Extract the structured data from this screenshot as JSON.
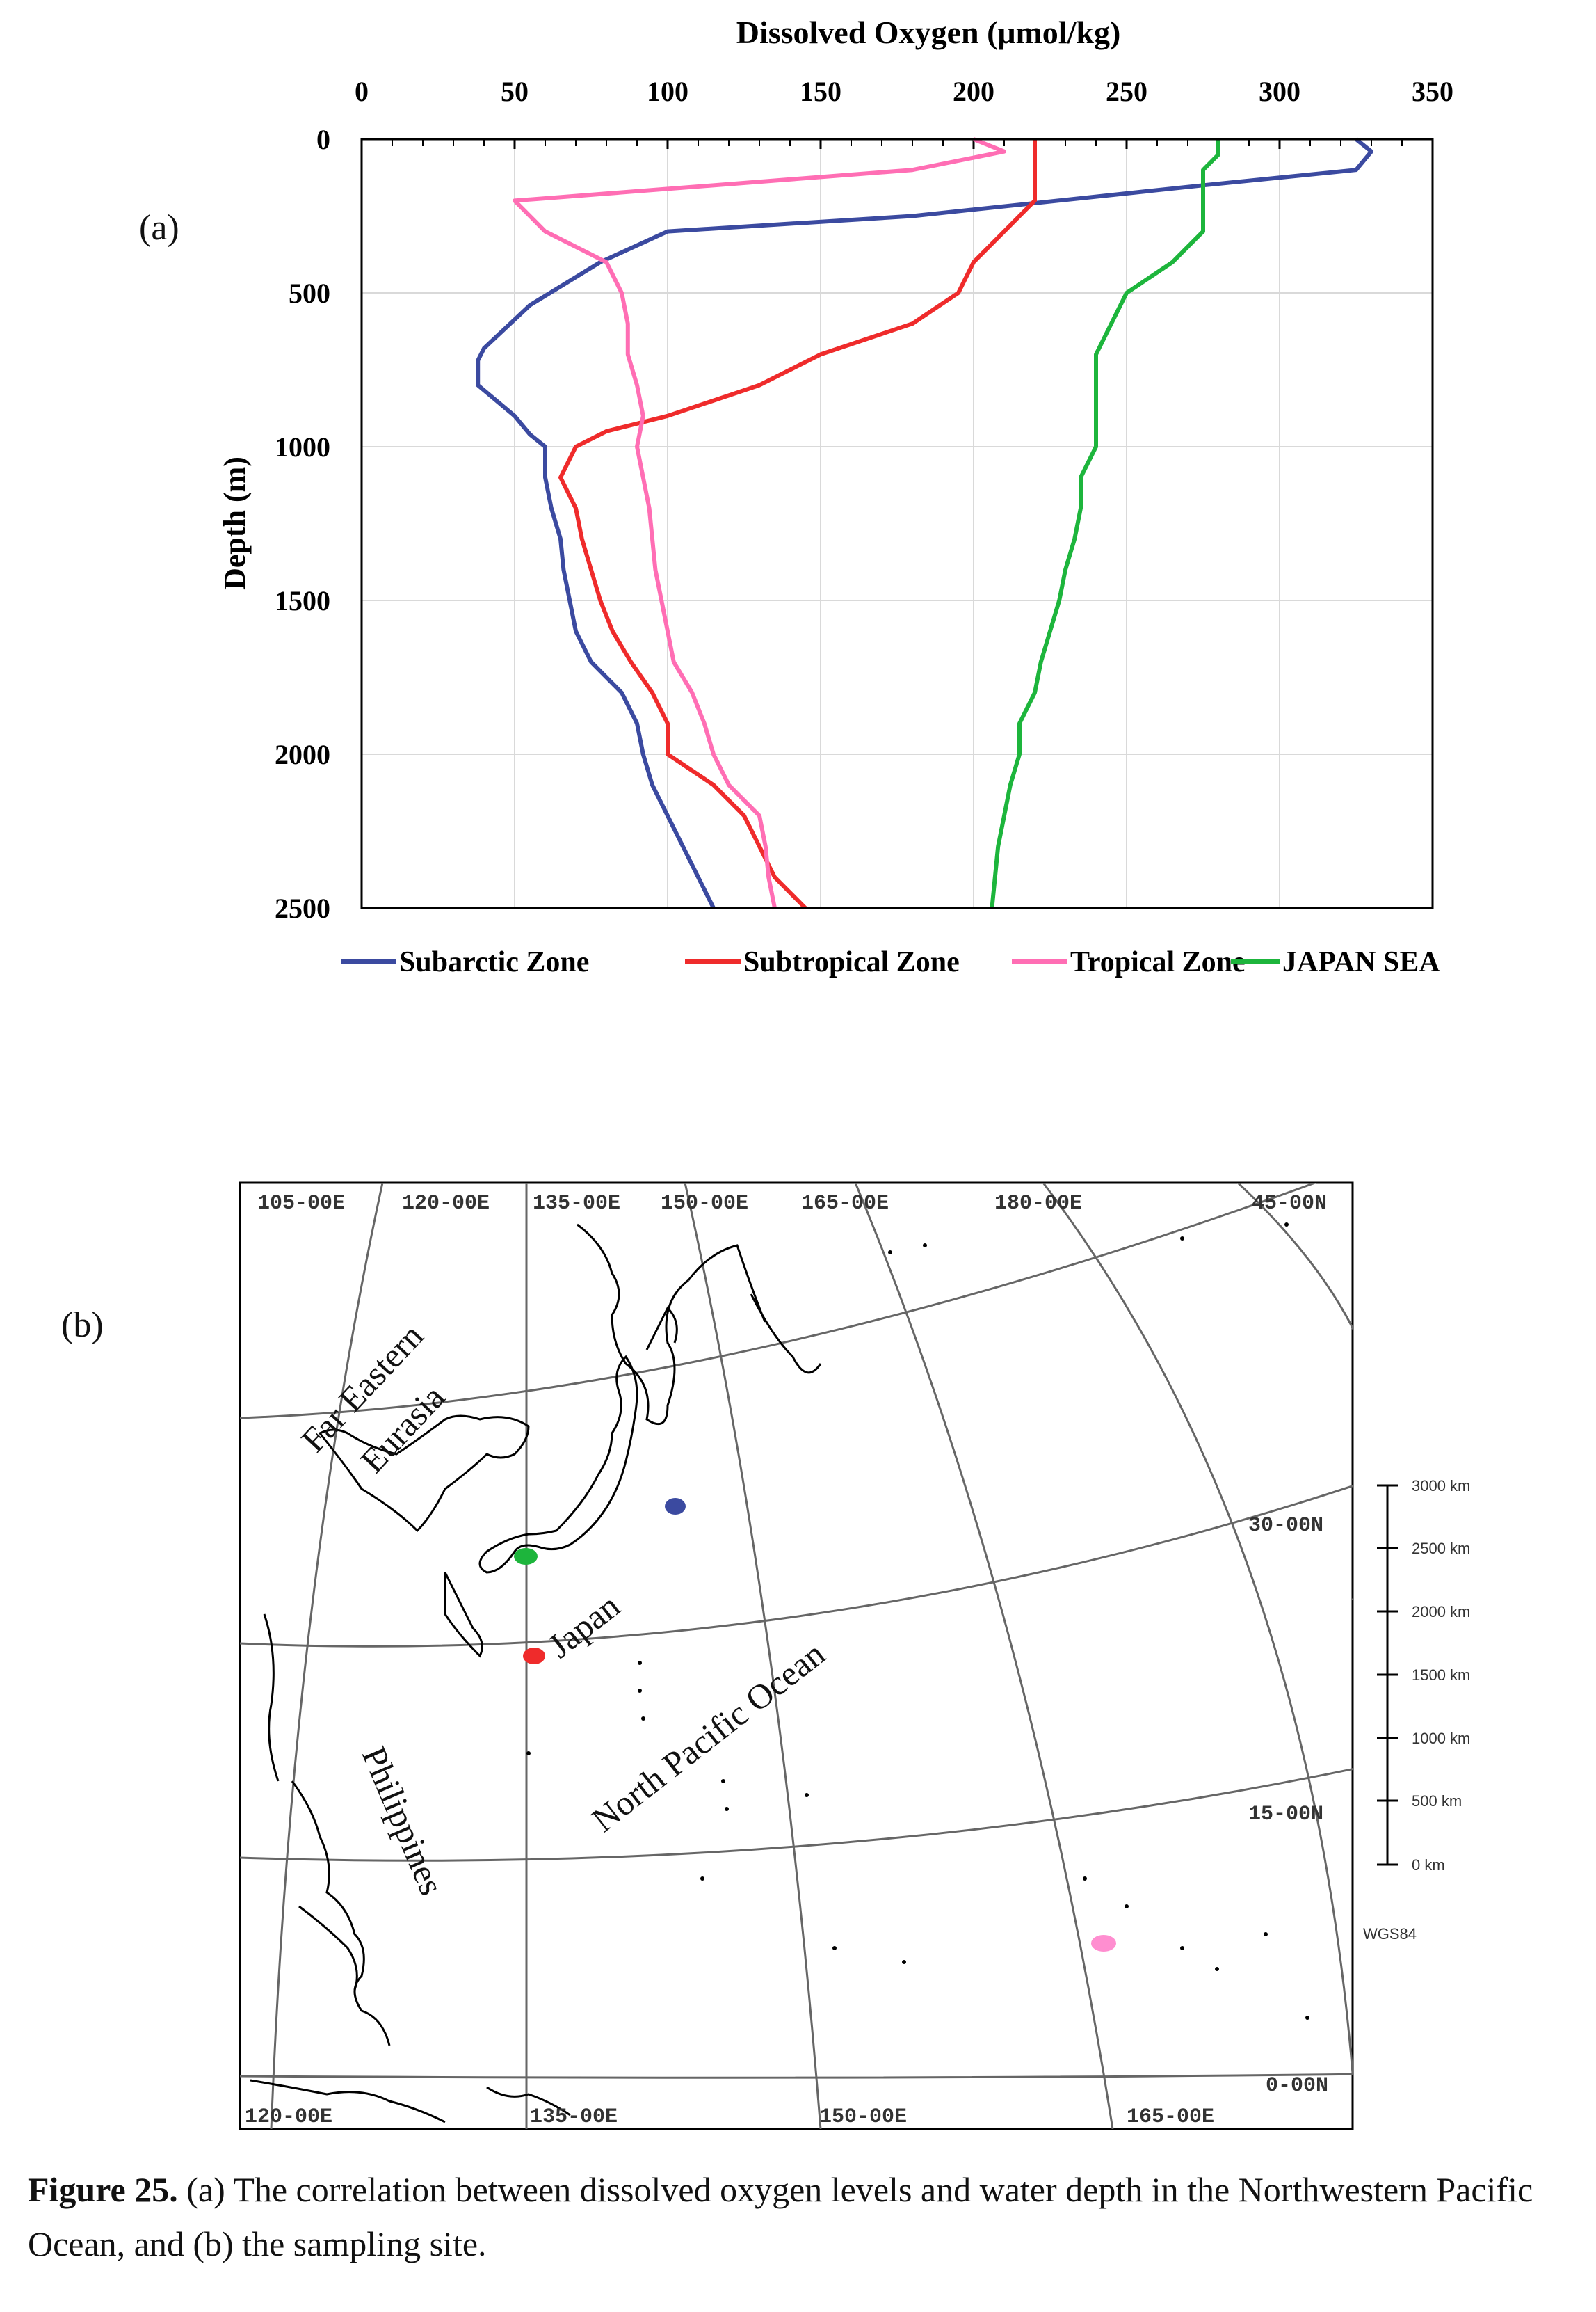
{
  "panel_a_label": "(a)",
  "panel_b_label": "(b)",
  "chart_data": {
    "type": "line",
    "title": "",
    "xlabel": "Dissolved Oxygen (μmol/kg)",
    "ylabel": "Depth (m)",
    "xlim": [
      0,
      350
    ],
    "ylim": [
      0,
      2500
    ],
    "x_axis_position": "top",
    "y_inverted": true,
    "x_ticks": [
      "0",
      "50",
      "100",
      "150",
      "200",
      "250",
      "300",
      "350"
    ],
    "y_ticks": [
      "0",
      "500",
      "1000",
      "1500",
      "2000",
      "2500"
    ],
    "grid": true,
    "legend_position": "bottom",
    "series": [
      {
        "name": "Subarctic Zone",
        "color": "#3b4aa0",
        "points": [
          [
            325,
            0
          ],
          [
            330,
            40
          ],
          [
            325,
            100
          ],
          [
            275,
            150
          ],
          [
            180,
            250
          ],
          [
            100,
            300
          ],
          [
            78,
            400
          ],
          [
            55,
            540
          ],
          [
            40,
            680
          ],
          [
            38,
            720
          ],
          [
            38,
            800
          ],
          [
            50,
            900
          ],
          [
            55,
            960
          ],
          [
            60,
            1000
          ],
          [
            60,
            1100
          ],
          [
            62,
            1200
          ],
          [
            65,
            1300
          ],
          [
            66,
            1400
          ],
          [
            68,
            1500
          ],
          [
            70,
            1600
          ],
          [
            75,
            1700
          ],
          [
            85,
            1800
          ],
          [
            90,
            1900
          ],
          [
            92,
            2000
          ],
          [
            95,
            2100
          ],
          [
            100,
            2200
          ],
          [
            105,
            2300
          ],
          [
            110,
            2400
          ],
          [
            115,
            2500
          ]
        ]
      },
      {
        "name": "Subtropical Zone",
        "color": "#ef2b2b",
        "points": [
          [
            220,
            0
          ],
          [
            220,
            100
          ],
          [
            220,
            200
          ],
          [
            210,
            300
          ],
          [
            200,
            400
          ],
          [
            195,
            500
          ],
          [
            180,
            600
          ],
          [
            150,
            700
          ],
          [
            130,
            800
          ],
          [
            100,
            900
          ],
          [
            80,
            950
          ],
          [
            70,
            1000
          ],
          [
            65,
            1100
          ],
          [
            70,
            1200
          ],
          [
            72,
            1300
          ],
          [
            75,
            1400
          ],
          [
            78,
            1500
          ],
          [
            82,
            1600
          ],
          [
            88,
            1700
          ],
          [
            95,
            1800
          ],
          [
            100,
            1900
          ],
          [
            100,
            2000
          ],
          [
            115,
            2100
          ],
          [
            125,
            2200
          ],
          [
            130,
            2300
          ],
          [
            135,
            2400
          ],
          [
            145,
            2500
          ]
        ]
      },
      {
        "name": "Tropical Zone",
        "color": "#ff6eb4",
        "points": [
          [
            200,
            0
          ],
          [
            210,
            40
          ],
          [
            180,
            100
          ],
          [
            50,
            200
          ],
          [
            60,
            300
          ],
          [
            80,
            400
          ],
          [
            85,
            500
          ],
          [
            87,
            600
          ],
          [
            87,
            700
          ],
          [
            90,
            800
          ],
          [
            92,
            900
          ],
          [
            90,
            1000
          ],
          [
            92,
            1100
          ],
          [
            94,
            1200
          ],
          [
            95,
            1300
          ],
          [
            96,
            1400
          ],
          [
            98,
            1500
          ],
          [
            100,
            1600
          ],
          [
            102,
            1700
          ],
          [
            108,
            1800
          ],
          [
            112,
            1900
          ],
          [
            115,
            2000
          ],
          [
            120,
            2100
          ],
          [
            130,
            2200
          ],
          [
            132,
            2300
          ],
          [
            133,
            2400
          ],
          [
            135,
            2500
          ]
        ]
      },
      {
        "name": "JAPAN SEA",
        "color": "#1db53c",
        "points": [
          [
            280,
            0
          ],
          [
            280,
            50
          ],
          [
            275,
            100
          ],
          [
            275,
            200
          ],
          [
            275,
            300
          ],
          [
            265,
            400
          ],
          [
            250,
            500
          ],
          [
            245,
            600
          ],
          [
            240,
            700
          ],
          [
            240,
            800
          ],
          [
            240,
            900
          ],
          [
            240,
            1000
          ],
          [
            235,
            1100
          ],
          [
            235,
            1200
          ],
          [
            233,
            1300
          ],
          [
            230,
            1400
          ],
          [
            228,
            1500
          ],
          [
            225,
            1600
          ],
          [
            222,
            1700
          ],
          [
            220,
            1800
          ],
          [
            215,
            1900
          ],
          [
            215,
            2000
          ],
          [
            212,
            2100
          ],
          [
            210,
            2200
          ],
          [
            208,
            2300
          ],
          [
            207,
            2400
          ],
          [
            206,
            2500
          ]
        ]
      }
    ]
  },
  "map": {
    "top_lon_labels": [
      "105-00E",
      "120-00E",
      "135-00E",
      "150-00E",
      "165-00E",
      "180-00E",
      "45-00N"
    ],
    "bottom_lon_labels": [
      "120-00E",
      "135-00E",
      "150-00E",
      "165-00E"
    ],
    "lat_labels": [
      "30-00N",
      "15-00N",
      "0-00N"
    ],
    "place_labels": {
      "far_eastern": "Far Eastern",
      "eurasia": "Eurasia",
      "japan": "Japan",
      "north_pacific": "North Pacific Ocean",
      "philippines": "Philippines"
    },
    "scale_labels": [
      "3000 km",
      "2500 km",
      "2000 km",
      "1500 km",
      "1000 km",
      "500 km",
      "0 km"
    ],
    "datum": "WGS84",
    "site_colors": {
      "subarctic": "#3b4aa0",
      "japan_sea": "#1db53c",
      "subtropical": "#ef2b2b",
      "tropical": "#ff8ed0"
    }
  },
  "caption": {
    "figure_label": "Figure 25.",
    "text": " (a) The correlation between dissolved oxygen levels and water depth in the Northwestern Pacific Ocean, and (b) the sampling site."
  }
}
